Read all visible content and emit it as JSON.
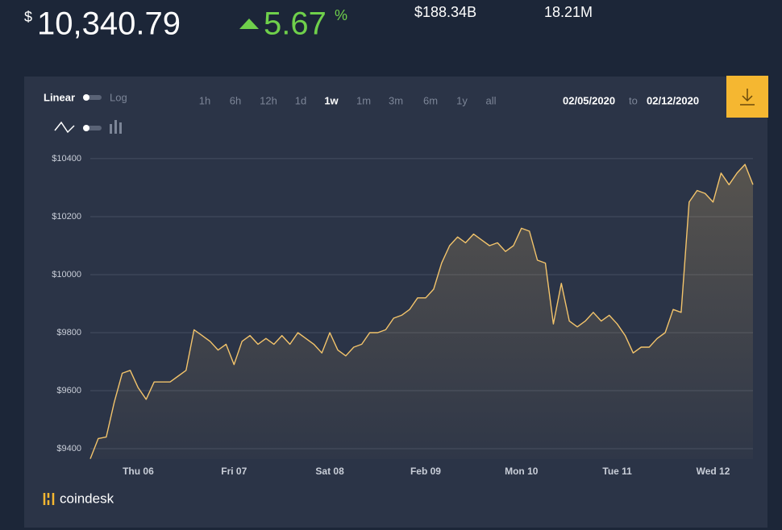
{
  "header": {
    "currency_symbol": "$",
    "price": "10,340.79",
    "change": "5.67",
    "change_unit": "%",
    "market_cap": "$188.34B",
    "supply": "18.21M"
  },
  "controls": {
    "scale_linear": "Linear",
    "scale_log": "Log",
    "ranges": [
      "1h",
      "6h",
      "12h",
      "1d",
      "1w",
      "1m",
      "3m",
      "6m",
      "1y",
      "all"
    ],
    "active_range": "1w",
    "date_from": "02/05/2020",
    "date_sep": "to",
    "date_to": "02/12/2020"
  },
  "logo": "coindesk",
  "chart_data": {
    "type": "line",
    "color": "#f3c46b",
    "grid": true,
    "categories": [
      null,
      null,
      null,
      null,
      null,
      null,
      "Thu 06",
      null,
      null,
      null,
      null,
      null,
      null,
      null,
      null,
      null,
      null,
      null,
      "Fri 07",
      null,
      null,
      null,
      null,
      null,
      null,
      null,
      null,
      null,
      null,
      null,
      "Sat 08",
      null,
      null,
      null,
      null,
      null,
      null,
      null,
      null,
      null,
      null,
      null,
      "Feb 09",
      null,
      null,
      null,
      null,
      null,
      null,
      null,
      null,
      null,
      null,
      null,
      "Mon 10",
      null,
      null,
      null,
      null,
      null,
      null,
      null,
      null,
      null,
      null,
      null,
      "Tue 11",
      null,
      null,
      null,
      null,
      null,
      null,
      null,
      null,
      null,
      null,
      null,
      "Wed 12",
      null,
      null,
      null,
      null,
      null
    ],
    "values": [
      9365,
      9435,
      9440,
      9560,
      9660,
      9670,
      9610,
      9570,
      9630,
      9630,
      9630,
      9650,
      9670,
      9810,
      9790,
      9770,
      9740,
      9760,
      9690,
      9770,
      9790,
      9760,
      9780,
      9760,
      9790,
      9760,
      9800,
      9780,
      9760,
      9730,
      9800,
      9740,
      9720,
      9750,
      9760,
      9800,
      9800,
      9810,
      9850,
      9860,
      9880,
      9920,
      9920,
      9950,
      10040,
      10100,
      10130,
      10110,
      10140,
      10120,
      10100,
      10110,
      10080,
      10100,
      10160,
      10150,
      10050,
      10040,
      9830,
      9970,
      9840,
      9820,
      9840,
      9870,
      9840,
      9860,
      9830,
      9790,
      9730,
      9750,
      9750,
      9780,
      9800,
      9880,
      9870,
      10250,
      10290,
      10280,
      10250,
      10350,
      10310,
      10350,
      10380,
      10310
    ],
    "ylim": [
      9364,
      10447
    ],
    "yticks": [
      {
        "value": 9400,
        "label": "$9400"
      },
      {
        "value": 9600,
        "label": "$9600"
      },
      {
        "value": 9800,
        "label": "$9800"
      },
      {
        "value": 10000,
        "label": "$10000"
      },
      {
        "value": 10200,
        "label": "$10200"
      },
      {
        "value": 10400,
        "label": "$10400"
      }
    ]
  }
}
